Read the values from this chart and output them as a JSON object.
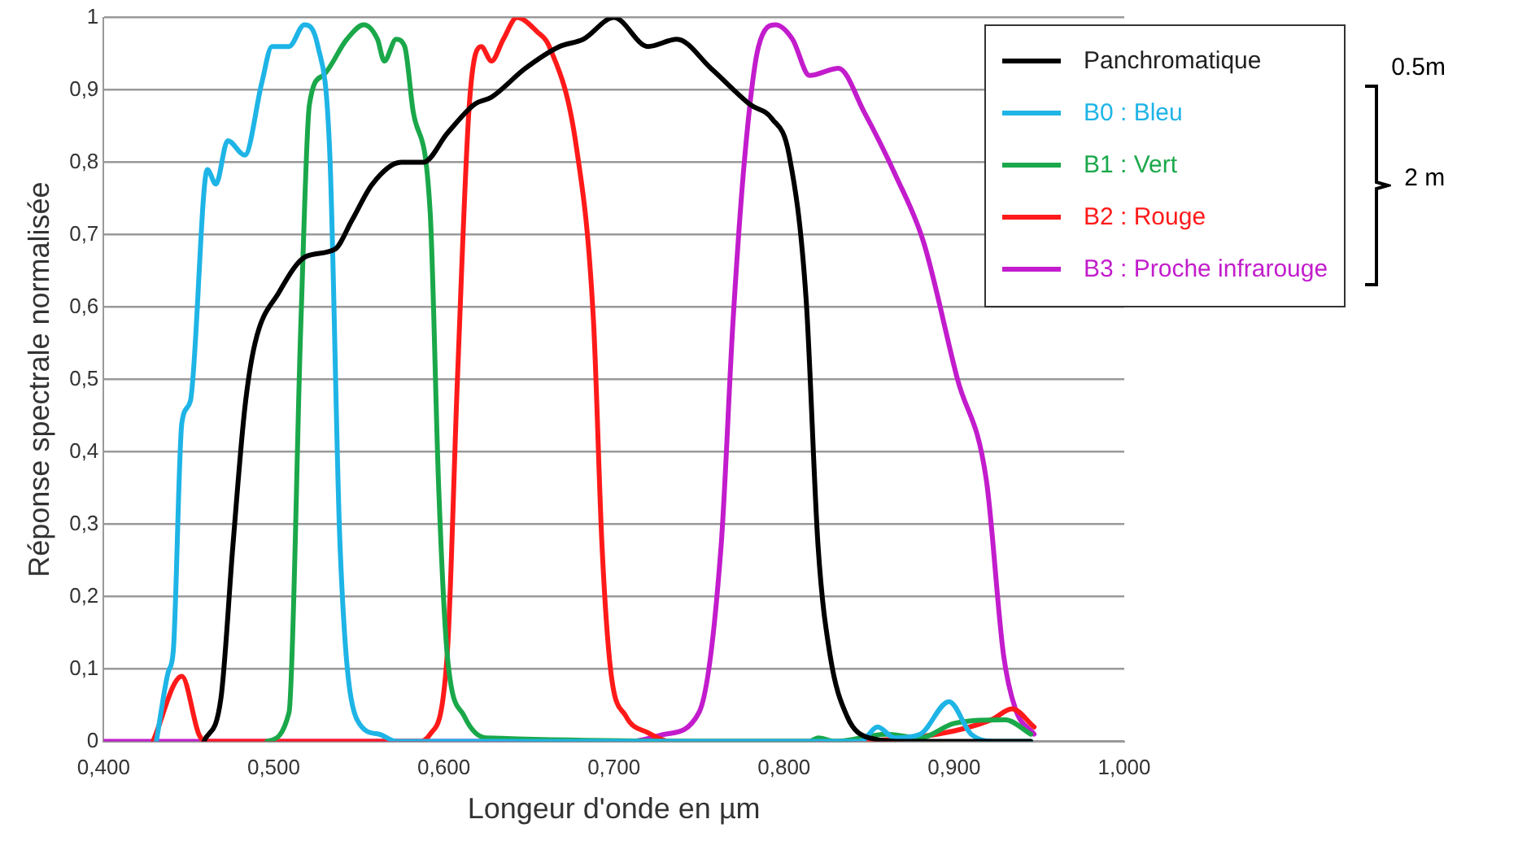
{
  "chart_data": {
    "type": "line",
    "xlabel": "Longeur d'onde en µm",
    "ylabel": "Réponse spectrale normalisée",
    "xlim": [
      0.4,
      1.0
    ],
    "xticks": [
      {
        "value": 0.4,
        "label": "0,400"
      },
      {
        "value": 0.5,
        "label": "0,500"
      },
      {
        "value": 0.6,
        "label": "0,600"
      },
      {
        "value": 0.7,
        "label": "0,700"
      },
      {
        "value": 0.8,
        "label": "0,800"
      },
      {
        "value": 0.9,
        "label": "0,900"
      },
      {
        "value": 1.0,
        "label": "1,000"
      }
    ],
    "ylim": [
      0,
      1
    ],
    "yticks": [
      0,
      {
        "value": 0.1,
        "label": "0,1"
      },
      {
        "value": 0.2,
        "label": "0,2"
      },
      {
        "value": 0.3,
        "label": "0,3"
      },
      {
        "value": 0.4,
        "label": "0,4"
      },
      {
        "value": 0.5,
        "label": "0,5"
      },
      {
        "value": 0.6,
        "label": "0,6"
      },
      {
        "value": 0.7,
        "label": "0,7"
      },
      {
        "value": 0.8,
        "label": "0,8"
      },
      {
        "value": 0.9,
        "label": "0,9"
      },
      1
    ],
    "grid": "y",
    "legend": "top right",
    "marker": "none",
    "line_style": "solid",
    "annotations": [
      "0.5m",
      "2 m"
    ],
    "series": [
      {
        "name": "Panchromatique",
        "color": "#000000",
        "x": [
          0.459,
          0.469,
          0.476,
          0.483,
          0.489,
          0.503,
          0.519,
          0.536,
          0.546,
          0.558,
          0.575,
          0.588,
          0.602,
          0.618,
          0.628,
          0.648,
          0.668,
          0.682,
          0.7,
          0.72,
          0.737,
          0.757,
          0.78,
          0.793,
          0.803,
          0.813,
          0.82,
          0.827,
          0.837,
          0.85,
          0.873,
          0.945
        ],
        "values": [
          0,
          0.06,
          0.27,
          0.46,
          0.55,
          0.62,
          0.67,
          0.68,
          0.72,
          0.77,
          0.8,
          0.8,
          0.84,
          0.88,
          0.89,
          0.93,
          0.96,
          0.97,
          1.0,
          0.96,
          0.97,
          0.93,
          0.88,
          0.86,
          0.81,
          0.61,
          0.27,
          0.12,
          0.035,
          0.005,
          0,
          0
        ]
      },
      {
        "name": "B0 : Bleu",
        "color": "#1eb4e6",
        "x": [
          0.431,
          0.438,
          0.441,
          0.446,
          0.451,
          0.461,
          0.466,
          0.473,
          0.483,
          0.493,
          0.499,
          0.509,
          0.518,
          0.526,
          0.533,
          0.539,
          0.549,
          0.562,
          0.572,
          0.845,
          0.855,
          0.865,
          0.88,
          0.897,
          0.91,
          0.925,
          0.945
        ],
        "values": [
          0,
          0.096,
          0.126,
          0.44,
          0.47,
          0.79,
          0.77,
          0.83,
          0.81,
          0.91,
          0.96,
          0.96,
          0.99,
          0.96,
          0.81,
          0.27,
          0.03,
          0.01,
          0,
          0,
          0.02,
          0.005,
          0.01,
          0.055,
          0.01,
          0,
          0
        ]
      },
      {
        "name": "B1 : Vert",
        "color": "#1aa84a",
        "x": [
          0.496,
          0.509,
          0.516,
          0.521,
          0.529,
          0.543,
          0.553,
          0.561,
          0.565,
          0.572,
          0.577,
          0.582,
          0.592,
          0.597,
          0.602,
          0.612,
          0.625,
          0.815,
          0.82,
          0.83,
          0.86,
          0.88,
          0.9,
          0.93,
          0.945
        ],
        "values": [
          0,
          0.04,
          0.58,
          0.88,
          0.92,
          0.97,
          0.99,
          0.97,
          0.94,
          0.97,
          0.96,
          0.87,
          0.73,
          0.35,
          0.12,
          0.035,
          0.005,
          0,
          0.005,
          0,
          0.01,
          0.005,
          0.025,
          0.03,
          0.01
        ]
      },
      {
        "name": "B2 : Rouge",
        "color": "#ff1a1a",
        "x": [
          0.429,
          0.446,
          0.456,
          0.46,
          0.585,
          0.592,
          0.602,
          0.608,
          0.615,
          0.622,
          0.628,
          0.635,
          0.643,
          0.655,
          0.662,
          0.678,
          0.688,
          0.693,
          0.698,
          0.707,
          0.72,
          0.733,
          0.82,
          0.89,
          0.922,
          0.934,
          0.947
        ],
        "values": [
          0,
          0.09,
          0.01,
          0,
          0,
          0.01,
          0.12,
          0.5,
          0.88,
          0.96,
          0.94,
          0.97,
          1.0,
          0.98,
          0.96,
          0.82,
          0.58,
          0.27,
          0.1,
          0.035,
          0.012,
          0,
          0,
          0.01,
          0.03,
          0.045,
          0.02
        ]
      },
      {
        "name": "B3 : Proche infrarouge",
        "color": "#c21ccc",
        "x": [
          0.4,
          0.71,
          0.73,
          0.75,
          0.763,
          0.77,
          0.777,
          0.785,
          0.795,
          0.805,
          0.815,
          0.832,
          0.847,
          0.866,
          0.882,
          0.902,
          0.919,
          0.929,
          0.936,
          0.947
        ],
        "values": [
          0,
          0,
          0.01,
          0.04,
          0.27,
          0.58,
          0.81,
          0.96,
          0.99,
          0.97,
          0.92,
          0.93,
          0.87,
          0.78,
          0.69,
          0.5,
          0.36,
          0.12,
          0.045,
          0.01
        ]
      }
    ]
  }
}
